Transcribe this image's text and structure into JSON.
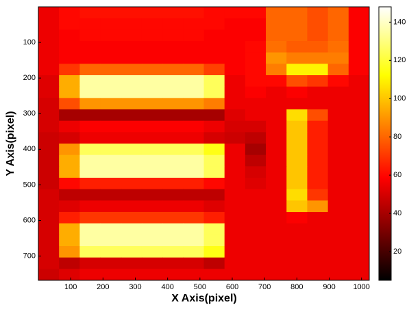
{
  "chart_data": {
    "type": "heatmap",
    "colormap": "hot",
    "x_label": "X Axis(pixel)",
    "y_label": "Y Axis(pixel)",
    "x": [
      32,
      96,
      160,
      224,
      288,
      352,
      416,
      480,
      544,
      608,
      672,
      736,
      800,
      864,
      928,
      992
    ],
    "y": [
      16,
      48,
      80,
      112,
      144,
      176,
      208,
      240,
      272,
      304,
      336,
      368,
      400,
      432,
      464,
      496,
      528,
      560,
      592,
      624,
      656,
      688,
      720,
      752
    ],
    "values": [
      [
        55,
        60,
        62,
        62,
        62,
        62,
        62,
        62,
        60,
        60,
        60,
        80,
        80,
        75,
        80,
        58
      ],
      [
        55,
        60,
        60,
        60,
        60,
        60,
        60,
        60,
        60,
        58,
        58,
        80,
        80,
        75,
        80,
        58
      ],
      [
        55,
        58,
        60,
        60,
        60,
        60,
        60,
        60,
        58,
        58,
        58,
        80,
        80,
        75,
        80,
        58
      ],
      [
        55,
        58,
        58,
        58,
        58,
        58,
        58,
        58,
        58,
        58,
        60,
        82,
        78,
        78,
        82,
        58
      ],
      [
        55,
        58,
        58,
        58,
        58,
        58,
        58,
        58,
        58,
        58,
        60,
        90,
        85,
        85,
        85,
        58
      ],
      [
        55,
        70,
        80,
        80,
        80,
        80,
        80,
        80,
        72,
        58,
        60,
        85,
        110,
        110,
        80,
        58
      ],
      [
        52,
        95,
        135,
        135,
        135,
        135,
        135,
        135,
        125,
        55,
        60,
        60,
        75,
        70,
        60,
        55
      ],
      [
        52,
        95,
        135,
        135,
        135,
        135,
        135,
        135,
        125,
        55,
        58,
        55,
        58,
        55,
        55,
        55
      ],
      [
        50,
        75,
        90,
        90,
        90,
        90,
        90,
        90,
        85,
        55,
        55,
        55,
        55,
        55,
        55,
        55
      ],
      [
        50,
        40,
        40,
        40,
        40,
        40,
        40,
        40,
        40,
        52,
        55,
        55,
        105,
        75,
        55,
        55
      ],
      [
        50,
        55,
        58,
        58,
        58,
        58,
        58,
        58,
        55,
        50,
        50,
        55,
        100,
        65,
        55,
        55
      ],
      [
        48,
        50,
        55,
        55,
        55,
        55,
        55,
        55,
        50,
        48,
        45,
        55,
        100,
        65,
        55,
        55
      ],
      [
        48,
        90,
        125,
        125,
        125,
        125,
        125,
        125,
        115,
        55,
        40,
        55,
        100,
        65,
        55,
        55
      ],
      [
        48,
        95,
        135,
        135,
        135,
        135,
        135,
        135,
        125,
        55,
        45,
        55,
        100,
        65,
        55,
        55
      ],
      [
        48,
        95,
        135,
        135,
        135,
        135,
        135,
        135,
        125,
        55,
        50,
        55,
        100,
        65,
        55,
        55
      ],
      [
        48,
        60,
        65,
        65,
        65,
        65,
        65,
        65,
        60,
        55,
        52,
        55,
        100,
        65,
        55,
        55
      ],
      [
        50,
        45,
        45,
        45,
        45,
        45,
        45,
        45,
        45,
        55,
        55,
        55,
        105,
        70,
        55,
        55
      ],
      [
        50,
        52,
        55,
        55,
        55,
        55,
        55,
        55,
        52,
        55,
        55,
        55,
        100,
        90,
        55,
        55
      ],
      [
        50,
        65,
        70,
        70,
        70,
        70,
        70,
        70,
        65,
        55,
        55,
        55,
        58,
        55,
        55,
        55
      ],
      [
        50,
        95,
        135,
        135,
        135,
        135,
        135,
        135,
        125,
        55,
        55,
        55,
        55,
        55,
        55,
        55
      ],
      [
        50,
        95,
        135,
        135,
        135,
        135,
        135,
        135,
        125,
        55,
        55,
        55,
        55,
        55,
        55,
        55
      ],
      [
        50,
        90,
        125,
        125,
        125,
        125,
        125,
        125,
        115,
        55,
        55,
        55,
        55,
        55,
        55,
        55
      ],
      [
        50,
        45,
        50,
        50,
        50,
        50,
        50,
        50,
        45,
        55,
        55,
        55,
        55,
        55,
        55,
        55
      ],
      [
        48,
        52,
        55,
        55,
        55,
        55,
        55,
        55,
        55,
        55,
        55,
        55,
        55,
        55,
        55,
        55
      ]
    ],
    "xlim": [
      0,
      1024
    ],
    "xticks": [
      100,
      200,
      300,
      400,
      500,
      600,
      700,
      800,
      900,
      1000
    ],
    "ylim": [
      0,
      768
    ],
    "y_reversed": true,
    "yticks": [
      100,
      200,
      300,
      400,
      500,
      600,
      700
    ],
    "colorbar": {
      "lim": [
        5,
        148
      ],
      "ticks": [
        20,
        40,
        60,
        80,
        100,
        120,
        140
      ]
    }
  }
}
